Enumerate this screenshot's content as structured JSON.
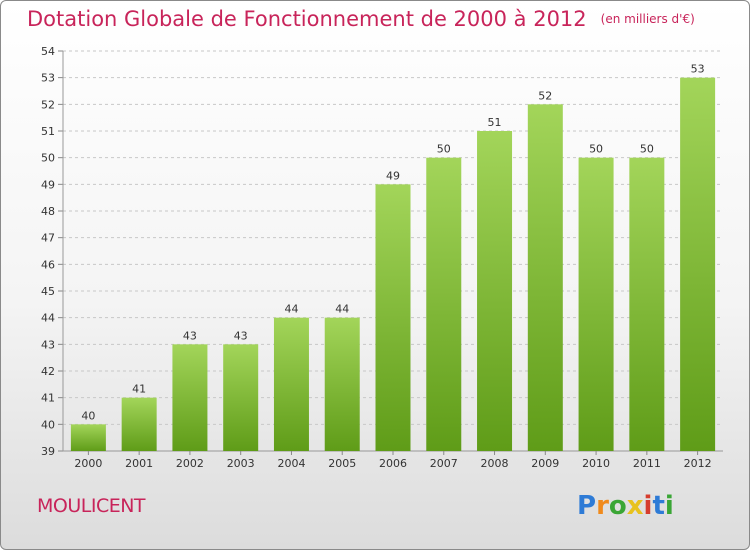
{
  "header": {
    "title": "Dotation Globale de Fonctionnement de 2000 à 2012",
    "unit": "(en milliers d'€)"
  },
  "footer": {
    "commune": "MOULICENT",
    "logo_text": "Proxiti"
  },
  "colors": {
    "title": "#c8245a",
    "bar_top": "#a3d55a",
    "bar_bottom": "#5f9c18"
  },
  "chart_data": {
    "type": "bar",
    "categories": [
      "2000",
      "2001",
      "2002",
      "2003",
      "2004",
      "2005",
      "2006",
      "2007",
      "2008",
      "2009",
      "2010",
      "2011",
      "2012"
    ],
    "values": [
      40,
      41,
      43,
      43,
      44,
      44,
      49,
      50,
      51,
      52,
      50,
      50,
      53
    ],
    "ylim": [
      39,
      54
    ],
    "yticks": [
      39,
      40,
      41,
      42,
      43,
      44,
      45,
      46,
      47,
      48,
      49,
      50,
      51,
      52,
      53,
      54
    ],
    "grid": true
  }
}
